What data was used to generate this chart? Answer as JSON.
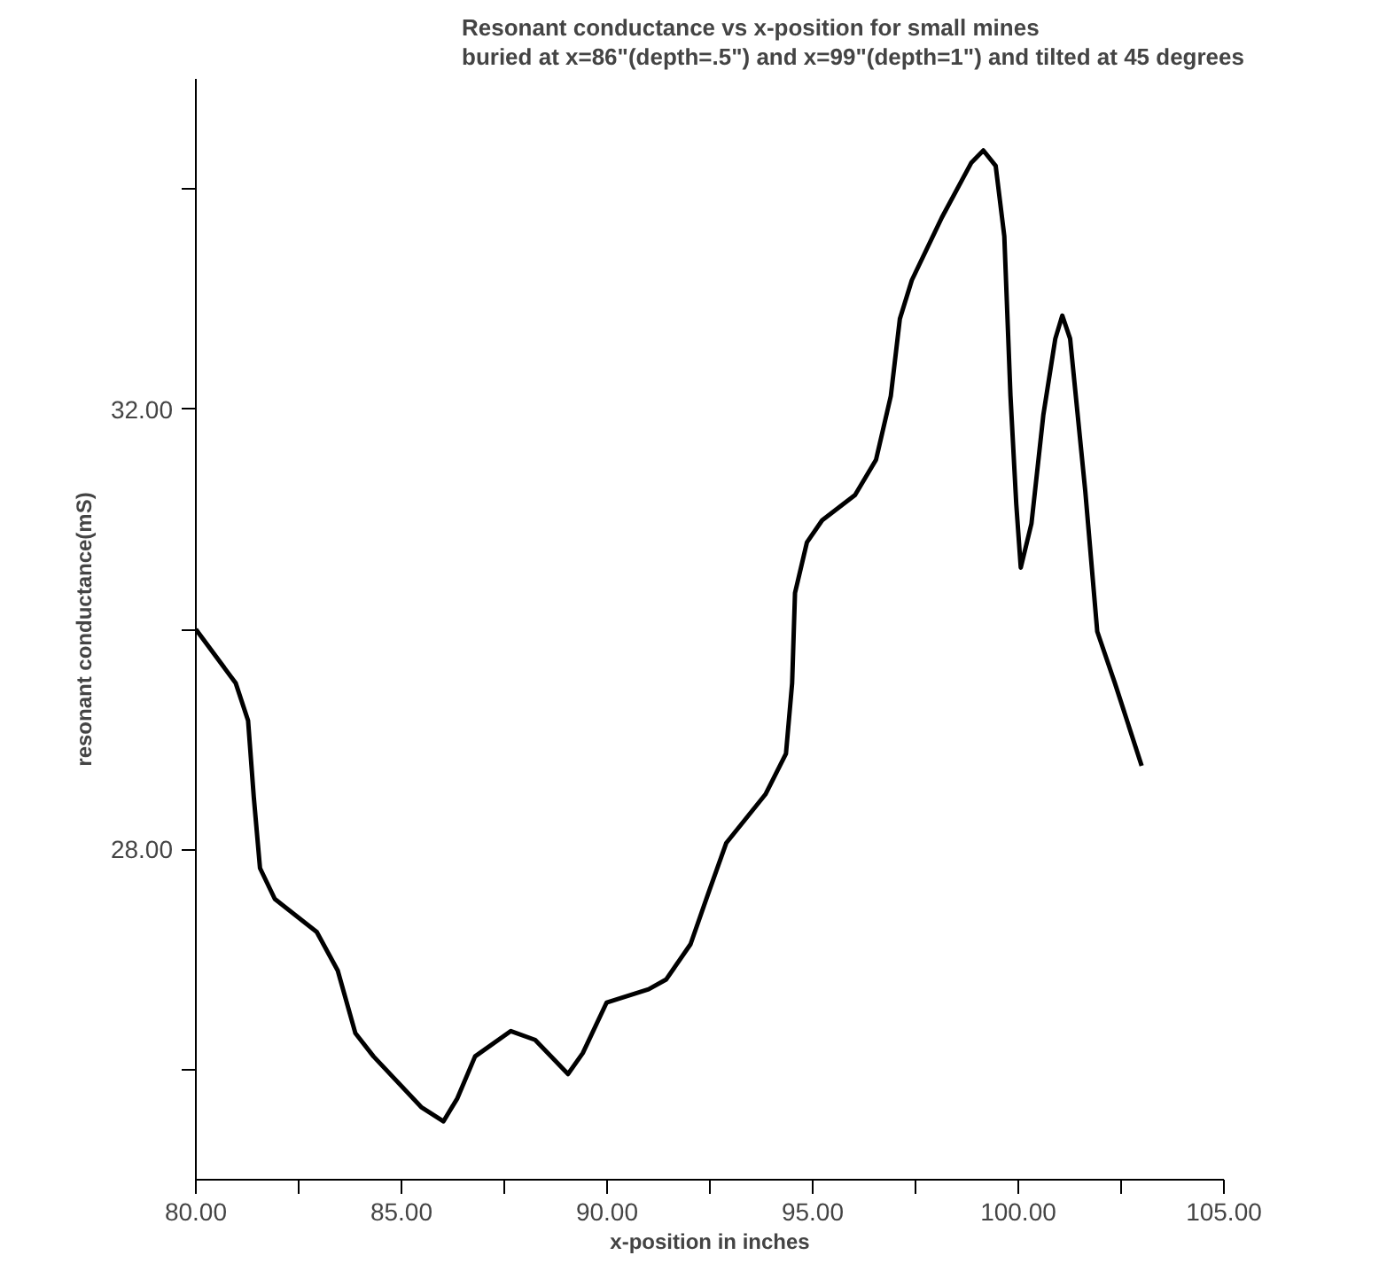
{
  "chart_data": {
    "type": "line",
    "title": "Resonant conductance vs x-position for small mines\nburied at x=86\"(depth=.5\") and x=99\"(depth=1\") and tilted at 45 degrees",
    "xlabel": "x-position in inches",
    "ylabel": "resonant conductance(mS)",
    "x": [
      80.0,
      80.97,
      81.27,
      81.41,
      81.56,
      81.92,
      82.94,
      83.45,
      83.88,
      84.32,
      85.48,
      86.02,
      86.36,
      86.79,
      87.66,
      88.25,
      89.05,
      89.41,
      89.99,
      91.01,
      91.44,
      92.03,
      92.46,
      92.9,
      93.85,
      94.35,
      94.5,
      94.57,
      94.86,
      95.23,
      96.03,
      96.54,
      96.9,
      97.12,
      97.41,
      98.14,
      98.86,
      99.15,
      99.45,
      99.66,
      99.81,
      99.95,
      100.06,
      100.32,
      100.61,
      100.9,
      101.07,
      101.26,
      101.63,
      101.92,
      102.35,
      103.0
    ],
    "series": [
      {
        "color": "#000000",
        "values": [
          30.0,
          29.51,
          29.17,
          28.47,
          27.83,
          27.55,
          27.25,
          26.9,
          26.33,
          26.12,
          25.66,
          25.53,
          25.74,
          26.12,
          26.35,
          26.27,
          25.96,
          26.15,
          26.61,
          26.73,
          26.82,
          27.14,
          27.6,
          28.06,
          28.5,
          28.87,
          29.51,
          30.33,
          30.79,
          30.99,
          31.22,
          31.54,
          32.12,
          32.82,
          33.17,
          33.74,
          34.24,
          34.35,
          34.21,
          33.57,
          32.12,
          31.14,
          30.56,
          30.96,
          31.95,
          32.64,
          32.85,
          32.64,
          31.25,
          29.98,
          29.51,
          28.76
        ]
      }
    ],
    "xlim": [
      80,
      105
    ],
    "ylim": [
      25,
      35
    ],
    "xticks": [
      {
        "value": 80,
        "label": "80.00"
      },
      {
        "value": 82.5,
        "label": null
      },
      {
        "value": 85,
        "label": "85.00"
      },
      {
        "value": 87.5,
        "label": null
      },
      {
        "value": 90,
        "label": "90.00"
      },
      {
        "value": 92.5,
        "label": null
      },
      {
        "value": 95,
        "label": "95.00"
      },
      {
        "value": 97.5,
        "label": null
      },
      {
        "value": 100,
        "label": "100.00"
      },
      {
        "value": 102.5,
        "label": null
      },
      {
        "value": 105,
        "label": "105.00"
      }
    ],
    "yticks": [
      {
        "value": 26,
        "label": null
      },
      {
        "value": 28,
        "label": "28.00"
      },
      {
        "value": 30,
        "label": null
      },
      {
        "value": 32,
        "label": "32.00"
      },
      {
        "value": 34,
        "label": null
      }
    ],
    "grid": false,
    "marker": "none",
    "line_style": "solid"
  }
}
